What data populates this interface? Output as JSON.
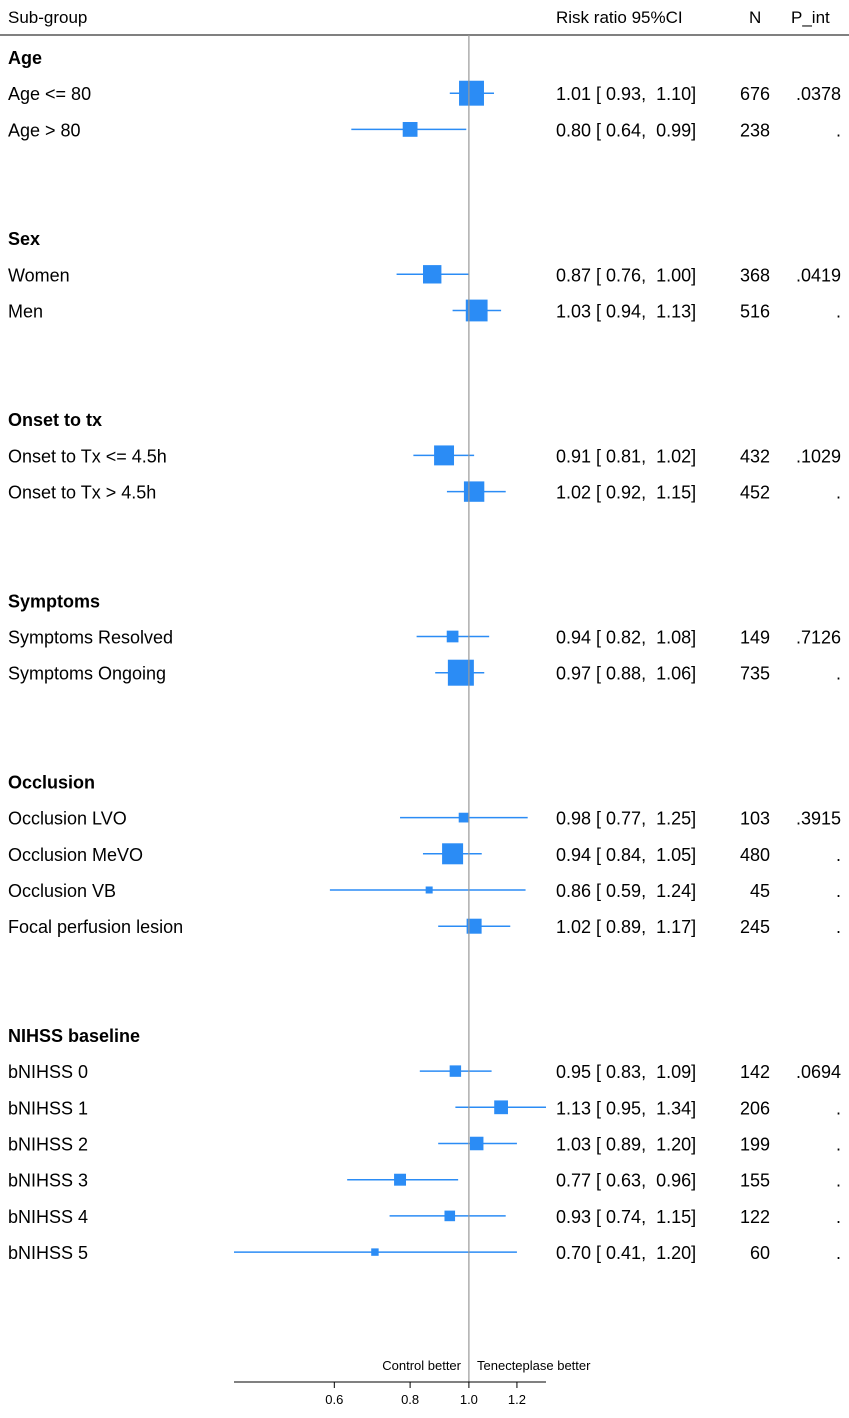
{
  "header": {
    "subgroup": "Sub-group",
    "rr": "Risk ratio 95%CI",
    "n": "N",
    "pint": "P_int"
  },
  "annotations": {
    "left": "Control better",
    "right": "Tenecteplase better"
  },
  "colors": {
    "marker": "#2b8cf5",
    "line": "#999999",
    "text": "#000000"
  },
  "chart_data": {
    "type": "forest",
    "xscale": "log",
    "xlim": [
      0.41,
      1.34
    ],
    "reference": 1.0,
    "xticks": [
      {
        "value": 0.6,
        "label": "0.6"
      },
      {
        "value": 0.8,
        "label": "0.8"
      },
      {
        "value": 1.0,
        "label": "1.0"
      },
      {
        "value": 1.2,
        "label": "1.2"
      }
    ],
    "groups": [
      {
        "title": "Age",
        "rows": [
          {
            "label": "Age <= 80",
            "rr": 1.01,
            "lo": 0.93,
            "hi": 1.1,
            "ci": "1.01 [ 0.93,  1.10]",
            "n": "676",
            "pint": ".0378"
          },
          {
            "label": "Age > 80",
            "rr": 0.8,
            "lo": 0.64,
            "hi": 0.99,
            "ci": "0.80 [ 0.64,  0.99]",
            "n": "238",
            "pint": "."
          }
        ]
      },
      {
        "title": "Sex",
        "rows": [
          {
            "label": "Women",
            "rr": 0.87,
            "lo": 0.76,
            "hi": 1.0,
            "ci": "0.87 [ 0.76,  1.00]",
            "n": "368",
            "pint": ".0419"
          },
          {
            "label": "Men",
            "rr": 1.03,
            "lo": 0.94,
            "hi": 1.13,
            "ci": "1.03 [ 0.94,  1.13]",
            "n": "516",
            "pint": "."
          }
        ]
      },
      {
        "title": "Onset to tx",
        "rows": [
          {
            "label": "Onset to Tx <= 4.5h",
            "rr": 0.91,
            "lo": 0.81,
            "hi": 1.02,
            "ci": "0.91 [ 0.81,  1.02]",
            "n": "432",
            "pint": ".1029"
          },
          {
            "label": "Onset to Tx > 4.5h",
            "rr": 1.02,
            "lo": 0.92,
            "hi": 1.15,
            "ci": "1.02 [ 0.92,  1.15]",
            "n": "452",
            "pint": "."
          }
        ]
      },
      {
        "title": "Symptoms",
        "rows": [
          {
            "label": "Symptoms Resolved",
            "rr": 0.94,
            "lo": 0.82,
            "hi": 1.08,
            "ci": "0.94 [ 0.82,  1.08]",
            "n": "149",
            "pint": ".7126"
          },
          {
            "label": "Symptoms Ongoing",
            "rr": 0.97,
            "lo": 0.88,
            "hi": 1.06,
            "ci": "0.97 [ 0.88,  1.06]",
            "n": "735",
            "pint": "."
          }
        ]
      },
      {
        "title": "Occlusion",
        "rows": [
          {
            "label": "Occlusion LVO",
            "rr": 0.98,
            "lo": 0.77,
            "hi": 1.25,
            "ci": "0.98 [ 0.77,  1.25]",
            "n": "103",
            "pint": ".3915"
          },
          {
            "label": "Occlusion MeVO",
            "rr": 0.94,
            "lo": 0.84,
            "hi": 1.05,
            "ci": "0.94 [ 0.84,  1.05]",
            "n": "480",
            "pint": "."
          },
          {
            "label": "Occlusion VB",
            "rr": 0.86,
            "lo": 0.59,
            "hi": 1.24,
            "ci": "0.86 [ 0.59,  1.24]",
            "n": "45",
            "pint": "."
          },
          {
            "label": "Focal perfusion lesion",
            "rr": 1.02,
            "lo": 0.89,
            "hi": 1.17,
            "ci": "1.02 [ 0.89,  1.17]",
            "n": "245",
            "pint": "."
          }
        ]
      },
      {
        "title": "NIHSS baseline",
        "rows": [
          {
            "label": "bNIHSS 0",
            "rr": 0.95,
            "lo": 0.83,
            "hi": 1.09,
            "ci": "0.95 [ 0.83,  1.09]",
            "n": "142",
            "pint": ".0694"
          },
          {
            "label": "bNIHSS 1",
            "rr": 1.13,
            "lo": 0.95,
            "hi": 1.34,
            "ci": "1.13 [ 0.95,  1.34]",
            "n": "206",
            "pint": "."
          },
          {
            "label": "bNIHSS 2",
            "rr": 1.03,
            "lo": 0.89,
            "hi": 1.2,
            "ci": "1.03 [ 0.89,  1.20]",
            "n": "199",
            "pint": "."
          },
          {
            "label": "bNIHSS 3",
            "rr": 0.77,
            "lo": 0.63,
            "hi": 0.96,
            "ci": "0.77 [ 0.63,  0.96]",
            "n": "155",
            "pint": "."
          },
          {
            "label": "bNIHSS 4",
            "rr": 0.93,
            "lo": 0.74,
            "hi": 1.15,
            "ci": "0.93 [ 0.74,  1.15]",
            "n": "122",
            "pint": "."
          },
          {
            "label": "bNIHSS 5",
            "rr": 0.7,
            "lo": 0.41,
            "hi": 1.2,
            "ci": "0.70 [ 0.41,  1.20]",
            "n": "60",
            "pint": "."
          }
        ]
      }
    ]
  }
}
